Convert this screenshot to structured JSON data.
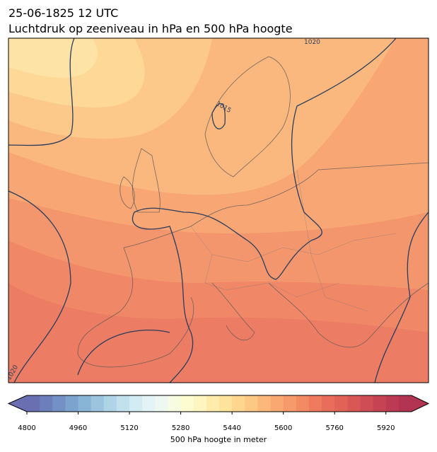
{
  "header": {
    "title_line1": "25-06-1825 12 UTC",
    "title_line2": "Luchtdruk op zeeniveau in hPa en 500 hPa hoogte"
  },
  "contour_labels": [
    "1015",
    "1020",
    "1020"
  ],
  "colorbar": {
    "label": "500 hPa hoogte in meter",
    "lim": [
      4800,
      6000
    ],
    "ticks": [
      4800,
      4960,
      5120,
      5280,
      5440,
      5600,
      5760,
      5920
    ],
    "colors": [
      "#6a6fb1",
      "#6d7fba",
      "#7391c4",
      "#7ba3cd",
      "#88b4d6",
      "#9cc4de",
      "#afd4e6",
      "#c2e1ed",
      "#d3ecf3",
      "#e3f3f6",
      "#eef8f1",
      "#f6fbe2",
      "#fcfcd0",
      "#fef6c0",
      "#feecac",
      "#fee39d",
      "#fed690",
      "#fdc784",
      "#fcb87a",
      "#f9a872",
      "#f6996b",
      "#f28a64",
      "#ee7b5e",
      "#e86e5b",
      "#e16358",
      "#d95856",
      "#cf4d55",
      "#c64354",
      "#bc3a53",
      "#b23352"
    ]
  }
}
